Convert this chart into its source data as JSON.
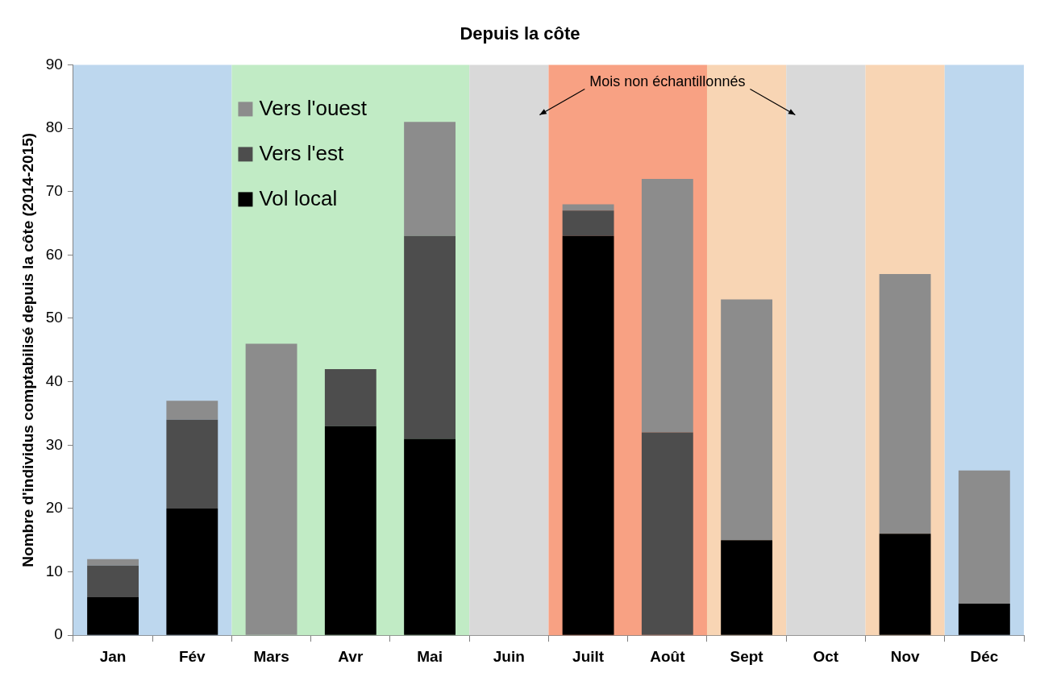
{
  "chart_data": {
    "type": "bar",
    "title": "Depuis la côte",
    "ylabel": "Nombre d'individus comptabilisé depuis la côte (2014-2015)",
    "categories": [
      "Jan",
      "Fév",
      "Mars",
      "Avr",
      "Mai",
      "Juin",
      "Juilt",
      "Août",
      "Sept",
      "Oct",
      "Nov",
      "Déc"
    ],
    "stacked": true,
    "series": [
      {
        "name": "Vol local",
        "color": "#000000",
        "values": [
          6,
          20,
          0,
          33,
          31,
          null,
          63,
          0,
          15,
          null,
          16,
          5
        ]
      },
      {
        "name": "Vers l'est",
        "color": "#4d4d4d",
        "values": [
          5,
          14,
          0,
          9,
          32,
          null,
          4,
          32,
          0,
          null,
          0,
          0
        ]
      },
      {
        "name": "Vers l'ouest",
        "color": "#8c8c8c",
        "values": [
          1,
          3,
          46,
          0,
          18,
          null,
          1,
          40,
          38,
          null,
          41,
          21
        ]
      }
    ],
    "ylim": [
      0,
      90
    ],
    "yticks": [
      0,
      10,
      20,
      30,
      40,
      50,
      60,
      70,
      80,
      90
    ],
    "grid": false,
    "legend": "top left",
    "bands": [
      {
        "axis": "x",
        "from": "Jan",
        "to": "Fév",
        "color": "#bdd7ee"
      },
      {
        "axis": "x",
        "from": "Mars",
        "to": "Mai",
        "color": "#c1ebc5"
      },
      {
        "axis": "x",
        "from": "Juin",
        "to": "Juin",
        "color": "#d9d9d9"
      },
      {
        "axis": "x",
        "from": "Juilt",
        "to": "Août",
        "color": "#f8a183"
      },
      {
        "axis": "x",
        "from": "Sept",
        "to": "Sept",
        "color": "#f8d5b4"
      },
      {
        "axis": "x",
        "from": "Oct",
        "to": "Oct",
        "color": "#d9d9d9"
      },
      {
        "axis": "x",
        "from": "Nov",
        "to": "Nov",
        "color": "#f8d5b4"
      },
      {
        "axis": "x",
        "from": "Déc",
        "to": "Déc",
        "color": "#bdd7ee"
      }
    ],
    "annotations": [
      "Mois non échantillonnés"
    ]
  }
}
